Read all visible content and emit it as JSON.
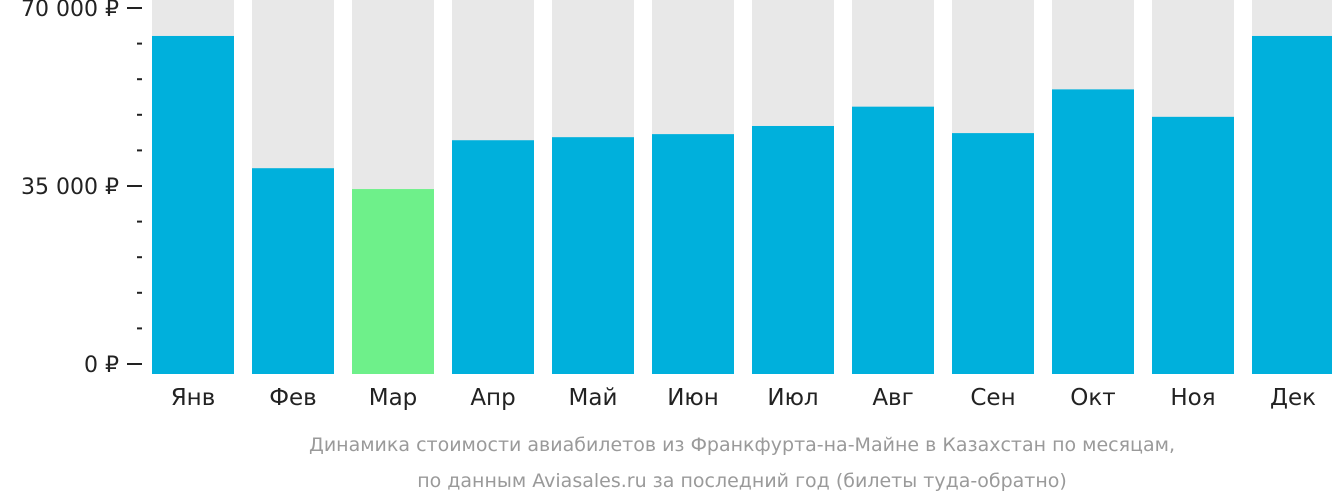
{
  "chart_data": {
    "type": "bar",
    "categories": [
      "Янв",
      "Фев",
      "Мар",
      "Апр",
      "Май",
      "Июн",
      "Июл",
      "Авг",
      "Сен",
      "Окт",
      "Ноя",
      "Дек"
    ],
    "values": [
      64500,
      38500,
      34400,
      44000,
      44600,
      45200,
      46800,
      50600,
      45400,
      54000,
      48600,
      64500
    ],
    "ylim": [
      0,
      70000
    ],
    "yticks": [
      {
        "value": 0,
        "label": "0 ₽"
      },
      {
        "value": 35000,
        "label": "35 000 ₽"
      },
      {
        "value": 70000,
        "label": "70 000 ₽"
      }
    ],
    "minor_tick_step": 7000,
    "highlight_index": 2,
    "colors": {
      "bar": "#00b0dc",
      "highlight": "#6ef08a",
      "background_bar": "#e8e8e8",
      "axis": "#222222"
    },
    "caption": [
      "Динамика стоимости авиабилетов из Франкфурта-на-Майне в Казахстан по месяцам,",
      "по данным Aviasales.ru за последний год (билеты туда-обратно)"
    ]
  }
}
